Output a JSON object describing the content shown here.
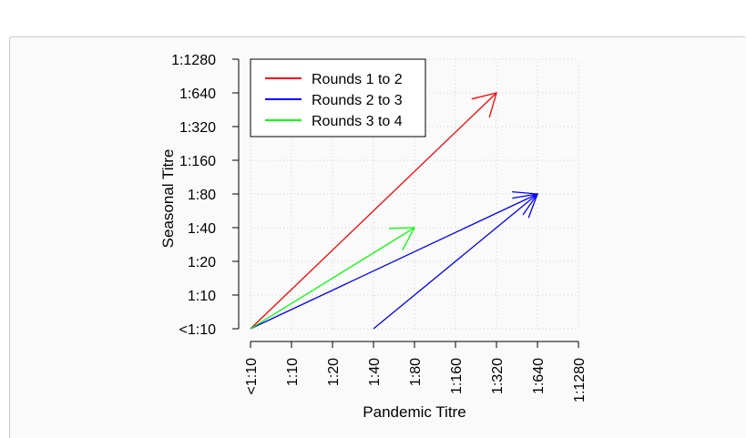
{
  "chart_data": {
    "type": "line",
    "title": "",
    "xlabel": "Pandemic Titre",
    "ylabel": "Seasonal Titre",
    "x_ticks": [
      "<1:10",
      "1:10",
      "1:20",
      "1:40",
      "1:80",
      "1:160",
      "1:320",
      "1:640",
      "1:1280"
    ],
    "y_ticks": [
      "<1:10",
      "1:10",
      "1:20",
      "1:40",
      "1:80",
      "1:160",
      "1:320",
      "1:640",
      "1:1280"
    ],
    "xlim": [
      0,
      8
    ],
    "ylim": [
      0,
      8
    ],
    "grid": true,
    "legend_position": "top-left",
    "series": [
      {
        "name": "Rounds 1 to 2",
        "color": "#ff0000",
        "arrows": [
          {
            "from": [
              0,
              0
            ],
            "to": [
              6,
              7
            ]
          }
        ]
      },
      {
        "name": "Rounds 2 to 3",
        "color": "#0000ff",
        "arrows": [
          {
            "from": [
              0,
              0
            ],
            "to": [
              7,
              4
            ]
          },
          {
            "from": [
              3,
              0
            ],
            "to": [
              7,
              4
            ]
          }
        ]
      },
      {
        "name": "Rounds 3 to 4",
        "color": "#00ff00",
        "arrows": [
          {
            "from": [
              0,
              0
            ],
            "to": [
              4,
              3
            ]
          }
        ]
      }
    ]
  }
}
